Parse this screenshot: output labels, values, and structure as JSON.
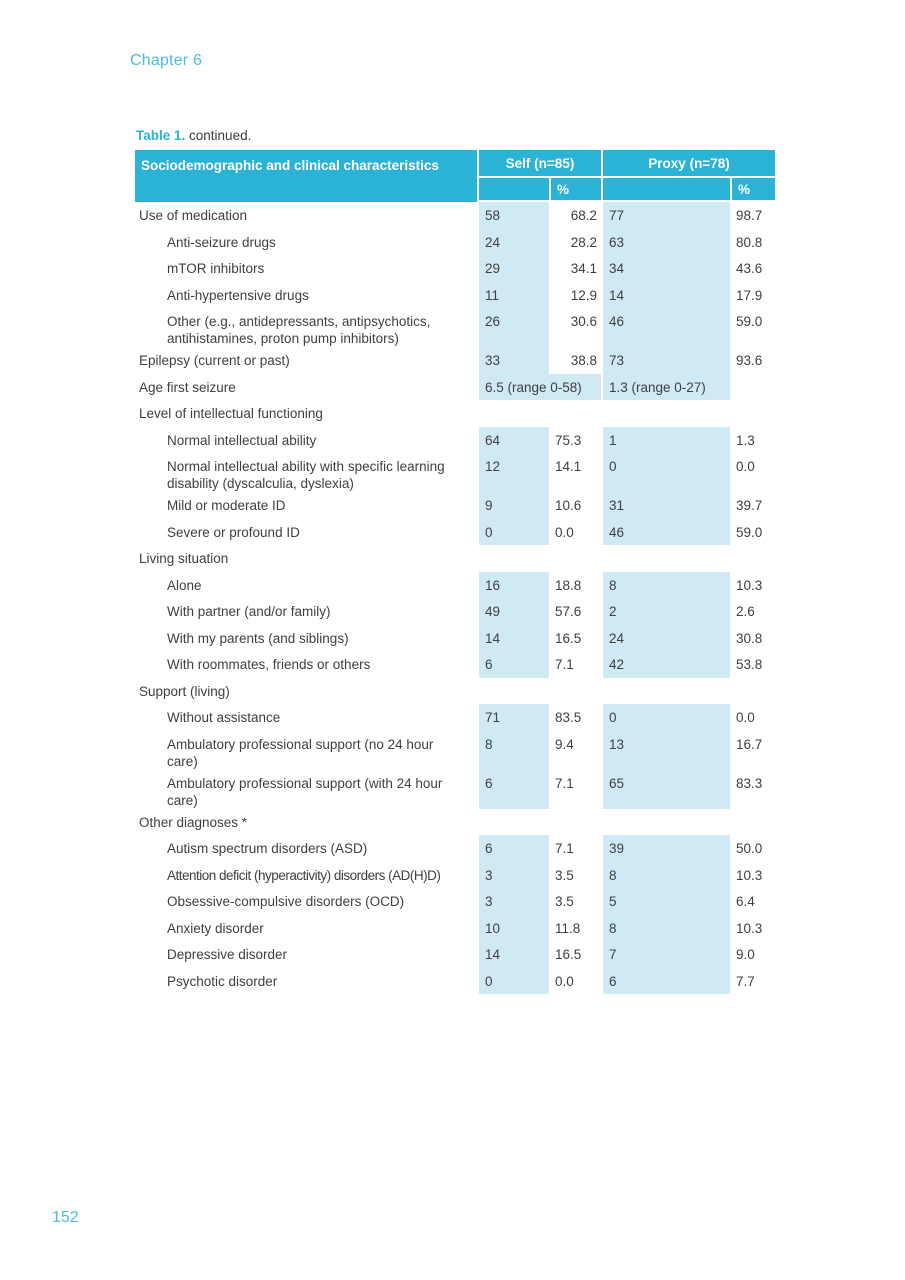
{
  "page": {
    "chapter_heading": "Chapter 6",
    "page_number": "152"
  },
  "caption": {
    "label": "Table 1.",
    "text": " continued."
  },
  "colors": {
    "accent": "#2bb3d6",
    "row_blue": "#cfe9f5",
    "heading_cyan": "#49bedb",
    "body_text": "#3f3f3f",
    "header_text": "#ffffff"
  },
  "table": {
    "header": {
      "characteristics": "Sociodemographic and clinical characteristics",
      "self_group": "Self (n=85)",
      "proxy_group": "Proxy (n=78)",
      "self_pct": "%",
      "proxy_pct": "%"
    },
    "rows": [
      {
        "type": "data",
        "label": "Use of medication",
        "indent": 0,
        "self_n": "58",
        "self_pct": "68.2",
        "proxy_n": "77",
        "proxy_pct": "98.7",
        "pct_align": "right"
      },
      {
        "type": "data",
        "label": "Anti-seizure drugs",
        "indent": 1,
        "self_n": "24",
        "self_pct": "28.2",
        "proxy_n": "63",
        "proxy_pct": "80.8",
        "pct_align": "right"
      },
      {
        "type": "data",
        "label": "mTOR inhibitors",
        "indent": 1,
        "self_n": "29",
        "self_pct": "34.1",
        "proxy_n": "34",
        "proxy_pct": "43.6",
        "pct_align": "right"
      },
      {
        "type": "data",
        "label": "Anti-hypertensive drugs",
        "indent": 1,
        "self_n": "11",
        "self_pct": "12.9",
        "proxy_n": "14",
        "proxy_pct": "17.9",
        "pct_align": "right"
      },
      {
        "type": "data",
        "label": "Other (e.g., antidepressants, antipsychotics, antihistamines,  proton pump inhibitors)",
        "indent": 1,
        "self_n": "26",
        "self_pct": "30.6",
        "proxy_n": "46",
        "proxy_pct": "59.0",
        "pct_align": "right"
      },
      {
        "type": "data",
        "label": "Epilepsy (current or past)",
        "indent": 0,
        "self_n": "33",
        "self_pct": "38.8",
        "proxy_n": "73",
        "proxy_pct": "93.6",
        "pct_align": "right"
      },
      {
        "type": "range",
        "label": "Age first seizure",
        "indent": 0,
        "self_range": "6.5 (range 0-58)",
        "proxy_range": "1.3 (range 0-27)"
      },
      {
        "type": "section",
        "label": "Level of intellectual functioning",
        "indent": 0
      },
      {
        "type": "data",
        "label": "Normal intellectual ability",
        "indent": 1,
        "self_n": "64",
        "self_pct": "75.3",
        "proxy_n": "1",
        "proxy_pct": "1.3",
        "pct_align": "left"
      },
      {
        "type": "data",
        "label": "Normal intellectual ability with specific learning disability (dyscalculia, dyslexia)",
        "indent": 1,
        "self_n": "12",
        "self_pct": "14.1",
        "proxy_n": "0",
        "proxy_pct": "0.0",
        "pct_align": "left"
      },
      {
        "type": "data",
        "label": "Mild or moderate ID",
        "indent": 1,
        "self_n": "9",
        "self_pct": "10.6",
        "proxy_n": "31",
        "proxy_pct": "39.7",
        "pct_align": "left"
      },
      {
        "type": "data",
        "label": "Severe or profound ID",
        "indent": 1,
        "self_n": "0",
        "self_pct": "0.0",
        "proxy_n": "46",
        "proxy_pct": "59.0",
        "pct_align": "left"
      },
      {
        "type": "section",
        "label": "Living situation",
        "indent": 0
      },
      {
        "type": "data",
        "label": "Alone",
        "indent": 1,
        "self_n": "16",
        "self_pct": "18.8",
        "proxy_n": "8",
        "proxy_pct": "10.3",
        "pct_align": "left"
      },
      {
        "type": "data",
        "label": "With partner (and/or family)",
        "indent": 1,
        "self_n": "49",
        "self_pct": "57.6",
        "proxy_n": "2",
        "proxy_pct": "2.6",
        "pct_align": "left"
      },
      {
        "type": "data",
        "label": "With my parents (and siblings)",
        "indent": 1,
        "self_n": "14",
        "self_pct": "16.5",
        "proxy_n": "24",
        "proxy_pct": "30.8",
        "pct_align": "left"
      },
      {
        "type": "data",
        "label": "With roommates, friends or others",
        "indent": 1,
        "self_n": "6",
        "self_pct": "7.1",
        "proxy_n": "42",
        "proxy_pct": "53.8",
        "pct_align": "left"
      },
      {
        "type": "section",
        "label": "Support (living)",
        "indent": 0
      },
      {
        "type": "data",
        "label": "Without assistance",
        "indent": 1,
        "self_n": "71",
        "self_pct": "83.5",
        "proxy_n": "0",
        "proxy_pct": "0.0",
        "pct_align": "left"
      },
      {
        "type": "data",
        "label": "Ambulatory professional support (no 24 hour care)",
        "indent": 1,
        "self_n": "8",
        "self_pct": "9.4",
        "proxy_n": "13",
        "proxy_pct": "16.7",
        "pct_align": "left"
      },
      {
        "type": "data",
        "label": "Ambulatory professional support (with 24 hour care)",
        "indent": 1,
        "self_n": "6",
        "self_pct": "7.1",
        "proxy_n": "65",
        "proxy_pct": "83.3",
        "pct_align": "left"
      },
      {
        "type": "section",
        "label": "Other diagnoses *",
        "indent": 0
      },
      {
        "type": "data",
        "label": "Autism spectrum disorders (ASD)",
        "indent": 1,
        "self_n": "6",
        "self_pct": "7.1",
        "proxy_n": "39",
        "proxy_pct": "50.0",
        "pct_align": "left"
      },
      {
        "type": "data",
        "label": "Attention deficit (hyperactivity) disorders (AD(H)D)",
        "indent": 1,
        "self_n": "3",
        "self_pct": "3.5",
        "proxy_n": "8",
        "proxy_pct": "10.3",
        "pct_align": "left",
        "condensed": true
      },
      {
        "type": "data",
        "label": "Obsessive-compulsive disorders (OCD)",
        "indent": 1,
        "self_n": "3",
        "self_pct": "3.5",
        "proxy_n": "5",
        "proxy_pct": "6.4",
        "pct_align": "left"
      },
      {
        "type": "data",
        "label": "Anxiety disorder",
        "indent": 1,
        "self_n": "10",
        "self_pct": "11.8",
        "proxy_n": "8",
        "proxy_pct": "10.3",
        "pct_align": "left"
      },
      {
        "type": "data",
        "label": "Depressive disorder",
        "indent": 1,
        "self_n": "14",
        "self_pct": "16.5",
        "proxy_n": "7",
        "proxy_pct": "9.0",
        "pct_align": "left"
      },
      {
        "type": "data",
        "label": "Psychotic disorder",
        "indent": 1,
        "self_n": "0",
        "self_pct": "0.0",
        "proxy_n": "6",
        "proxy_pct": "7.7",
        "pct_align": "left"
      }
    ]
  }
}
